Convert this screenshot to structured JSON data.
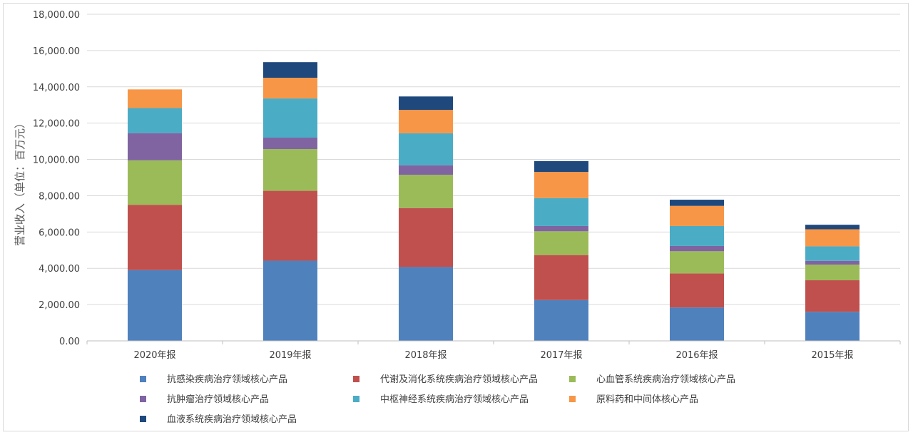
{
  "chart_data": {
    "type": "bar",
    "stacked": true,
    "ylabel": "营业收入（单位：百万元）",
    "ylim": [
      0,
      18000
    ],
    "ytick_step": 2000,
    "ytick_labels": [
      "0.00",
      "2,000.00",
      "4,000.00",
      "6,000.00",
      "8,000.00",
      "10,000.00",
      "12,000.00",
      "14,000.00",
      "16,000.00",
      "18,000.00"
    ],
    "grid": true,
    "legend_position": "bottom",
    "categories": [
      "2020年报",
      "2019年报",
      "2018年报",
      "2017年报",
      "2016年报",
      "2015年报"
    ],
    "series": [
      {
        "name": "抗感染疾病治疗领域核心产品",
        "color": "#4f81bd",
        "values": [
          3900,
          4420,
          4070,
          2250,
          1840,
          1600
        ]
      },
      {
        "name": "代谢及消化系统疾病治疗领域核心产品",
        "color": "#c0504d",
        "values": [
          3600,
          3850,
          3250,
          2480,
          1880,
          1740
        ]
      },
      {
        "name": "心血管系统疾病治疗领域核心产品",
        "color": "#9bbb59",
        "values": [
          2450,
          2300,
          1830,
          1310,
          1220,
          860
        ]
      },
      {
        "name": "抗肿瘤治疗领域核心产品",
        "color": "#8064a2",
        "values": [
          1500,
          630,
          530,
          290,
          290,
          210
        ]
      },
      {
        "name": "中枢神经系统疾病治疗领域核心产品",
        "color": "#4bacc6",
        "values": [
          1380,
          2160,
          1760,
          1540,
          1100,
          800
        ]
      },
      {
        "name": "原料药和中间体核心产品",
        "color": "#f79646",
        "values": [
          1030,
          1140,
          1290,
          1440,
          1110,
          940
        ]
      },
      {
        "name": "血液系统疾病治疗领域核心产品",
        "color": "#1f497d",
        "values": [
          0,
          860,
          740,
          600,
          340,
          250
        ]
      }
    ]
  }
}
